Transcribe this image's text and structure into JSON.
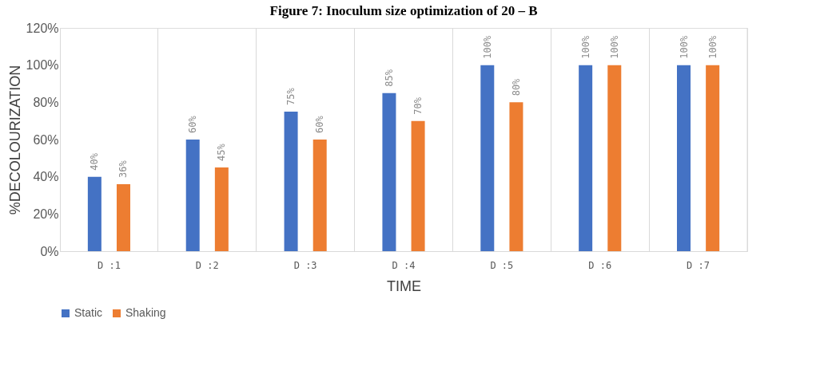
{
  "chart_data": {
    "type": "bar",
    "title": "Figure 7: Inoculum size optimization of 20 – B",
    "xlabel": "TIME",
    "ylabel": "%DECOLOURIZATION",
    "categories": [
      "D :1",
      "D :2",
      "D :3",
      "D :4",
      "D :5",
      "D :6",
      "D :7"
    ],
    "series": [
      {
        "name": "Static",
        "color": "#4472c4",
        "values": [
          40,
          60,
          75,
          85,
          100,
          100,
          100
        ],
        "value_labels": [
          "40%",
          "60%",
          "75%",
          "85%",
          "100%",
          "100%",
          "100%"
        ]
      },
      {
        "name": "Shaking",
        "color": "#ed7d31",
        "values": [
          36,
          45,
          60,
          70,
          80,
          100,
          100
        ],
        "value_labels": [
          "36%",
          "45%",
          "60%",
          "70%",
          "80%",
          "100%",
          "100%"
        ]
      }
    ],
    "ylim": [
      0,
      120
    ],
    "yticks": [
      {
        "value": 0,
        "label": "0%"
      },
      {
        "value": 20,
        "label": "20%"
      },
      {
        "value": 40,
        "label": "40%"
      },
      {
        "value": 60,
        "label": "60%"
      },
      {
        "value": 80,
        "label": "80%"
      },
      {
        "value": 100,
        "label": "100%"
      },
      {
        "value": 120,
        "label": "120%"
      }
    ],
    "grid": "x",
    "legend": "bottom"
  }
}
